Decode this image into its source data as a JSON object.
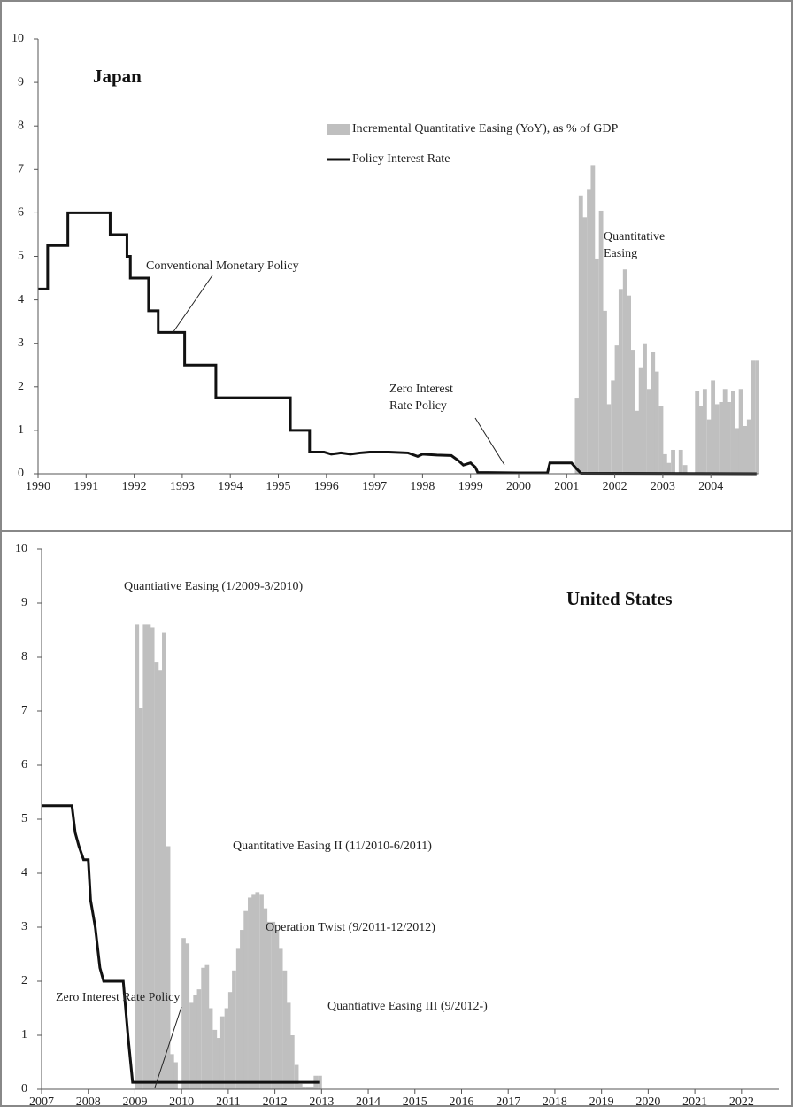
{
  "chart_data": [
    {
      "type": "bar-line",
      "title": "Japan",
      "series": [
        {
          "name": "Incremental Quantitative Easing (YoY), as % of GDP",
          "color": "#bfbfbf",
          "type": "bar",
          "x": [
            2001.17,
            2001.25,
            2001.33,
            2001.42,
            2001.5,
            2001.58,
            2001.67,
            2001.75,
            2001.83,
            2001.92,
            2002.0,
            2002.08,
            2002.17,
            2002.25,
            2002.33,
            2002.42,
            2002.5,
            2002.58,
            2002.67,
            2002.75,
            2002.83,
            2002.92,
            2003.0,
            2003.08,
            2003.17,
            2003.25,
            2003.33,
            2003.42,
            2003.5,
            2003.58,
            2003.67,
            2003.75,
            2003.83,
            2003.92,
            2004.0,
            2004.08,
            2004.17,
            2004.25,
            2004.33,
            2004.42,
            2004.5,
            2004.58,
            2004.67,
            2004.75,
            2004.83,
            2004.92
          ],
          "values": [
            1.75,
            6.4,
            5.9,
            6.55,
            7.1,
            4.95,
            6.05,
            3.75,
            1.6,
            2.15,
            2.95,
            4.25,
            4.7,
            4.1,
            2.85,
            1.45,
            2.45,
            3.0,
            1.95,
            2.8,
            2.35,
            1.55,
            0.45,
            0.25,
            0.55,
            0,
            0.55,
            0.2,
            0,
            0,
            1.9,
            1.55,
            1.95,
            1.25,
            2.15,
            1.6,
            1.65,
            1.95,
            1.65,
            1.9,
            1.05,
            1.95,
            1.1,
            1.25,
            2.6,
            2.6
          ]
        },
        {
          "name": "Policy Interest Rate",
          "color": "#111111",
          "type": "line",
          "x": [
            1990.0,
            1990.2,
            1990.2,
            1990.62,
            1990.62,
            1991.5,
            1991.5,
            1991.85,
            1991.85,
            1991.92,
            1991.92,
            1992.3,
            1992.3,
            1992.5,
            1992.5,
            1993.05,
            1993.05,
            1993.7,
            1993.7,
            1995.25,
            1995.25,
            1995.65,
            1995.65,
            1995.95,
            1996.1,
            1996.3,
            1996.5,
            1996.7,
            1996.9,
            1997.3,
            1997.7,
            1997.9,
            1998.0,
            1998.3,
            1998.6,
            1998.75,
            1998.85,
            1999.0,
            1999.1,
            1999.15,
            2000.0,
            2000.6,
            2000.65,
            2001.1,
            2001.2,
            2001.3,
            2004.95
          ],
          "values": [
            4.25,
            4.25,
            5.25,
            5.25,
            6.0,
            6.0,
            5.5,
            5.5,
            5.0,
            5.0,
            4.5,
            4.5,
            3.75,
            3.75,
            3.25,
            3.25,
            2.5,
            2.5,
            1.75,
            1.75,
            1.0,
            1.0,
            0.5,
            0.5,
            0.45,
            0.48,
            0.45,
            0.48,
            0.5,
            0.5,
            0.48,
            0.4,
            0.45,
            0.43,
            0.42,
            0.3,
            0.2,
            0.25,
            0.15,
            0.03,
            0.02,
            0.02,
            0.25,
            0.25,
            0.12,
            0.01,
            0.0
          ]
        }
      ],
      "xlim": [
        1990,
        2005
      ],
      "xticks": [
        1990,
        1991,
        1992,
        1993,
        1994,
        1995,
        1996,
        1997,
        1998,
        1999,
        2000,
        2001,
        2002,
        2003,
        2004
      ],
      "ylim": [
        0,
        10
      ],
      "yticks": [
        0,
        1,
        2,
        3,
        4,
        5,
        6,
        7,
        8,
        9,
        10
      ],
      "annotations": [
        {
          "lines": [
            "Conventional Monetary Policy"
          ]
        },
        {
          "lines": [
            "Zero Interest",
            "Rate Policy"
          ]
        },
        {
          "lines": [
            "Quantitative",
            "Easing"
          ]
        }
      ]
    },
    {
      "type": "bar-line",
      "title": "United States",
      "series": [
        {
          "color": "#bfbfbf",
          "type": "bar",
          "x": [
            2009.0,
            2009.08,
            2009.17,
            2009.25,
            2009.33,
            2009.42,
            2009.5,
            2009.58,
            2009.67,
            2009.75,
            2009.83,
            2010.0,
            2010.08,
            2010.17,
            2010.25,
            2010.33,
            2010.42,
            2010.5,
            2010.58,
            2010.67,
            2010.75,
            2010.83,
            2010.92,
            2011.0,
            2011.08,
            2011.17,
            2011.25,
            2011.33,
            2011.42,
            2011.5,
            2011.58,
            2011.67,
            2011.75,
            2011.83,
            2011.92,
            2012.0,
            2012.08,
            2012.17,
            2012.25,
            2012.33,
            2012.42,
            2012.5,
            2012.58,
            2012.67,
            2012.75,
            2012.83,
            2012.92
          ],
          "values": [
            8.6,
            7.05,
            8.6,
            8.6,
            8.55,
            7.9,
            7.75,
            8.45,
            4.5,
            0.65,
            0.5,
            2.8,
            2.7,
            1.6,
            1.75,
            1.85,
            2.25,
            2.3,
            1.5,
            1.1,
            0.95,
            1.35,
            1.5,
            1.8,
            2.2,
            2.6,
            2.95,
            3.3,
            3.55,
            3.6,
            3.65,
            3.6,
            3.35,
            3.1,
            3.1,
            2.95,
            2.6,
            2.2,
            1.6,
            1.0,
            0.45,
            0.1,
            0.05,
            0.05,
            0.05,
            0.25,
            0.25
          ]
        },
        {
          "color": "#111111",
          "type": "line",
          "x": [
            2007.0,
            2007.65,
            2007.72,
            2007.8,
            2007.9,
            2008.0,
            2008.05,
            2008.15,
            2008.25,
            2008.33,
            2008.75,
            2008.85,
            2008.95,
            2012.95
          ],
          "values": [
            5.25,
            5.25,
            4.75,
            4.5,
            4.25,
            4.25,
            3.5,
            3.0,
            2.25,
            2.0,
            2.0,
            1.0,
            0.13,
            0.13
          ]
        }
      ],
      "xlim": [
        2007,
        2022.8
      ],
      "xticks": [
        2007,
        2008,
        2009,
        2010,
        2011,
        2012,
        2013,
        2014,
        2015,
        2016,
        2017,
        2018,
        2019,
        2020,
        2021,
        2022
      ],
      "ylim": [
        0,
        10
      ],
      "yticks": [
        0,
        1,
        2,
        3,
        4,
        5,
        6,
        7,
        8,
        9,
        10
      ],
      "annotations": [
        {
          "lines": [
            "Quantiative Easing (1/2009-3/2010)"
          ]
        },
        {
          "lines": [
            "Quantitative Easing II (11/2010-6/2011)"
          ]
        },
        {
          "lines": [
            "Operation Twist (9/2011-12/2012)"
          ]
        },
        {
          "lines": [
            "Zero Interest Rate Policy"
          ]
        },
        {
          "lines": [
            "Quantiative Easing III (9/2012-)"
          ]
        }
      ]
    }
  ]
}
